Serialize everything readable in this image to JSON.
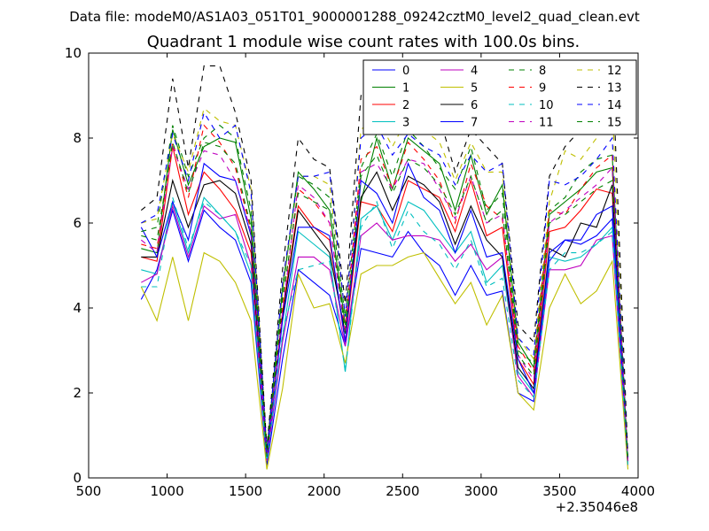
{
  "suptitle": "Data file: modeM0/AS1A03_051T01_9000001288_09242cztM0_level2_quad_clean.evt",
  "chart_data": {
    "type": "line",
    "title": "Quadrant 1 module wise count rates with 100.0s bins.",
    "xlabel": "",
    "ylabel": "",
    "x_offset_label": "+2.35046e8",
    "xlim": [
      500,
      4000
    ],
    "ylim": [
      0,
      10
    ],
    "xticks": [
      500,
      1000,
      1500,
      2000,
      2500,
      3000,
      3500,
      4000
    ],
    "yticks": [
      0,
      2,
      4,
      6,
      8,
      10
    ],
    "x": [
      835,
      935,
      1035,
      1135,
      1235,
      1335,
      1435,
      1535,
      1635,
      1735,
      1835,
      1935,
      2035,
      2135,
      2235,
      2335,
      2435,
      2535,
      2635,
      2735,
      2835,
      2935,
      3035,
      3135,
      3235,
      3335,
      3435,
      3535,
      3635,
      3735,
      3835,
      3935
    ],
    "legend": {
      "location": "upper-right",
      "columns": 4
    },
    "series": [
      {
        "name": "0",
        "color": "#0000ff",
        "dash": "solid",
        "values": [
          4.2,
          4.9,
          6.3,
          5.1,
          6.3,
          5.9,
          5.6,
          4.6,
          0.3,
          2.8,
          4.9,
          4.6,
          4.3,
          3.1,
          5.4,
          5.3,
          5.2,
          5.8,
          5.3,
          5.0,
          4.3,
          5.0,
          4.3,
          4.4,
          2.0,
          1.8,
          5.1,
          5.6,
          5.5,
          5.7,
          6.1,
          0.3
        ]
      },
      {
        "name": "1",
        "color": "#008000",
        "dash": "solid",
        "values": [
          5.4,
          5.3,
          8.2,
          6.9,
          7.8,
          8.0,
          7.9,
          6.1,
          0.6,
          4.4,
          7.2,
          6.8,
          6.3,
          3.6,
          6.5,
          8.0,
          6.8,
          8.0,
          7.7,
          7.4,
          6.3,
          7.6,
          6.2,
          6.9,
          3.2,
          2.6,
          6.2,
          6.5,
          6.8,
          7.2,
          7.3,
          0.4
        ]
      },
      {
        "name": "2",
        "color": "#ff0000",
        "dash": "solid",
        "values": [
          5.2,
          5.1,
          7.8,
          6.2,
          7.2,
          6.8,
          6.3,
          5.3,
          0.5,
          3.9,
          6.4,
          5.9,
          5.6,
          3.2,
          6.5,
          6.4,
          5.8,
          7.0,
          6.8,
          6.6,
          5.8,
          7.0,
          5.7,
          5.9,
          2.8,
          2.2,
          5.8,
          5.9,
          6.3,
          6.8,
          6.7,
          0.4
        ]
      },
      {
        "name": "3",
        "color": "#00bfbf",
        "dash": "solid",
        "values": [
          4.9,
          4.8,
          6.5,
          5.3,
          6.6,
          6.2,
          5.8,
          4.8,
          0.4,
          3.3,
          5.8,
          5.5,
          5.2,
          2.5,
          6.1,
          6.4,
          5.6,
          6.5,
          6.3,
          5.8,
          5.3,
          5.8,
          4.6,
          5.0,
          2.5,
          2.0,
          5.2,
          5.1,
          5.2,
          5.5,
          5.9,
          0.3
        ]
      },
      {
        "name": "4",
        "color": "#bf00bf",
        "dash": "solid",
        "values": [
          4.6,
          4.8,
          6.4,
          5.2,
          6.4,
          6.1,
          6.2,
          5.0,
          0.4,
          3.2,
          5.2,
          5.2,
          4.9,
          3.1,
          5.7,
          6.0,
          5.6,
          5.7,
          5.7,
          5.6,
          5.1,
          5.5,
          4.9,
          5.2,
          2.4,
          1.9,
          4.9,
          4.9,
          5.0,
          5.6,
          5.7,
          0.3
        ]
      },
      {
        "name": "5",
        "color": "#bfbf00",
        "dash": "solid",
        "values": [
          4.5,
          3.7,
          5.2,
          3.7,
          5.3,
          5.1,
          4.6,
          3.7,
          0.2,
          2.1,
          4.8,
          4.0,
          4.1,
          2.7,
          4.8,
          5.0,
          5.0,
          5.2,
          5.3,
          4.7,
          4.1,
          4.6,
          3.6,
          4.3,
          2.0,
          1.6,
          4.0,
          4.8,
          4.1,
          4.4,
          5.1,
          0.2
        ]
      },
      {
        "name": "6",
        "color": "#000000",
        "dash": "solid",
        "values": [
          5.2,
          5.2,
          7.0,
          5.9,
          6.9,
          7.0,
          6.7,
          5.5,
          0.5,
          3.8,
          6.3,
          5.8,
          5.3,
          3.4,
          6.6,
          7.2,
          6.3,
          7.1,
          6.9,
          6.5,
          5.5,
          6.4,
          5.6,
          5.2,
          2.6,
          2.1,
          5.4,
          5.2,
          6.0,
          5.9,
          6.9,
          0.4
        ]
      },
      {
        "name": "7",
        "color": "#0000ff",
        "dash": "solid",
        "values": [
          5.9,
          5.2,
          6.5,
          5.6,
          7.4,
          7.1,
          7.0,
          5.7,
          0.5,
          3.7,
          5.9,
          5.9,
          5.7,
          3.2,
          7.0,
          6.7,
          6.0,
          7.4,
          6.6,
          6.3,
          5.3,
          6.3,
          5.2,
          5.3,
          2.8,
          2.0,
          5.3,
          5.6,
          5.6,
          6.2,
          6.4,
          0.4
        ]
      },
      {
        "name": "8",
        "color": "#008000",
        "dash": "dashed",
        "values": [
          5.8,
          5.9,
          8.3,
          7.1,
          8.0,
          8.3,
          8.0,
          6.3,
          0.6,
          4.5,
          7.1,
          6.9,
          6.6,
          3.8,
          7.3,
          8.1,
          7.1,
          8.2,
          7.8,
          7.3,
          6.8,
          7.8,
          6.3,
          6.7,
          3.0,
          2.7,
          6.3,
          6.6,
          7.2,
          7.5,
          7.6,
          0.4
        ]
      },
      {
        "name": "9",
        "color": "#ff0000",
        "dash": "dashed",
        "values": [
          5.5,
          5.4,
          7.9,
          6.6,
          8.3,
          7.9,
          7.3,
          5.8,
          0.5,
          4.1,
          6.8,
          6.5,
          6.0,
          3.5,
          7.5,
          7.8,
          6.8,
          7.9,
          7.5,
          7.0,
          6.0,
          7.4,
          6.4,
          6.1,
          3.1,
          2.5,
          6.3,
          6.2,
          6.8,
          7.3,
          7.6,
          0.4
        ]
      },
      {
        "name": "10",
        "color": "#00bfbf",
        "dash": "dashed",
        "values": [
          4.5,
          4.5,
          6.6,
          5.4,
          6.5,
          6.2,
          5.8,
          5.0,
          0.4,
          3.4,
          4.9,
          5.0,
          5.1,
          2.5,
          5.9,
          6.5,
          5.4,
          6.3,
          5.8,
          5.5,
          4.9,
          5.6,
          4.5,
          4.7,
          2.3,
          1.9,
          4.9,
          5.3,
          5.3,
          5.5,
          5.8,
          0.3
        ]
      },
      {
        "name": "11",
        "color": "#bf00bf",
        "dash": "dashed",
        "values": [
          5.6,
          5.3,
          7.8,
          6.8,
          7.7,
          7.6,
          7.0,
          5.8,
          0.5,
          3.9,
          6.9,
          6.6,
          6.0,
          3.4,
          7.2,
          7.4,
          6.8,
          7.5,
          7.4,
          6.8,
          6.1,
          7.1,
          6.0,
          6.2,
          2.9,
          2.3,
          6.0,
          6.3,
          6.6,
          6.9,
          7.3,
          0.4
        ]
      },
      {
        "name": "12",
        "color": "#bfbf00",
        "dash": "dashed",
        "values": [
          6.0,
          6.1,
          8.1,
          7.2,
          8.7,
          8.4,
          8.3,
          6.8,
          0.7,
          4.5,
          7.1,
          7.1,
          6.9,
          3.8,
          8.2,
          8.5,
          7.8,
          8.5,
          8.2,
          7.9,
          7.0,
          7.9,
          7.2,
          7.2,
          3.3,
          2.8,
          6.5,
          7.7,
          7.5,
          8.0,
          8.8,
          0.5
        ]
      },
      {
        "name": "13",
        "color": "#000000",
        "dash": "dashed",
        "values": [
          6.3,
          6.6,
          9.4,
          7.3,
          9.7,
          9.7,
          8.6,
          7.0,
          0.7,
          4.9,
          8.0,
          7.5,
          7.3,
          4.1,
          9.0,
          9.2,
          8.7,
          9.0,
          8.7,
          8.5,
          7.2,
          8.2,
          7.8,
          7.4,
          3.6,
          3.2,
          7.1,
          7.8,
          8.2,
          8.4,
          9.8,
          0.5
        ]
      },
      {
        "name": "14",
        "color": "#0000ff",
        "dash": "dashed",
        "values": [
          6.0,
          6.2,
          8.1,
          7.0,
          8.6,
          8.0,
          8.3,
          6.7,
          0.6,
          4.6,
          7.1,
          7.1,
          7.2,
          3.8,
          8.0,
          8.3,
          7.6,
          8.1,
          7.8,
          7.6,
          6.9,
          7.6,
          7.2,
          7.4,
          3.3,
          2.9,
          7.0,
          6.9,
          7.1,
          7.5,
          8.0,
          0.4
        ]
      },
      {
        "name": "15",
        "color": "#008000",
        "dash": "dashed",
        "values": [
          5.7,
          5.6,
          7.9,
          6.7,
          7.9,
          7.8,
          7.4,
          5.9,
          0.5,
          4.2,
          6.7,
          6.5,
          6.3,
          3.4,
          7.1,
          7.6,
          6.7,
          7.5,
          7.3,
          6.9,
          6.2,
          7.1,
          6.0,
          6.3,
          2.9,
          2.4,
          6.0,
          6.2,
          6.5,
          6.8,
          7.0,
          0.4
        ]
      }
    ]
  }
}
